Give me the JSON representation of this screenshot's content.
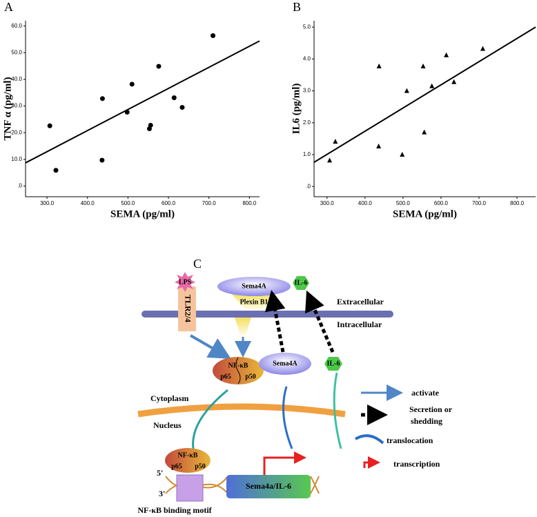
{
  "panels": {
    "a": "A",
    "b": "B",
    "c": "C"
  },
  "chart_data": [
    {
      "type": "scatter",
      "marker": "circle",
      "color": "#000000",
      "x_label": "SEMA (pg/ml)",
      "y_label": "TNF α (pg/ml)",
      "x": [
        307,
        322,
        436,
        437,
        498,
        510,
        553,
        556,
        576,
        614,
        634,
        710
      ],
      "values": [
        22.6,
        5.9,
        9.7,
        32.8,
        27.7,
        38.2,
        21.5,
        22.8,
        44.9,
        33.1,
        29.5,
        56.4
      ],
      "fit_line": {
        "x": [
          247,
          825
        ],
        "y": [
          8.7,
          54.4
        ]
      },
      "xlim": [
        247,
        825
      ],
      "ylim": [
        -4,
        62
      ],
      "xticks": [
        {
          "value": 300,
          "label": "300.0"
        },
        {
          "value": 400,
          "label": "400.0"
        },
        {
          "value": 500,
          "label": "500.0"
        },
        {
          "value": 600,
          "label": "600.0"
        },
        {
          "value": 700,
          "label": "700.0"
        },
        {
          "value": 800,
          "label": "800.0"
        }
      ],
      "yticks": [
        {
          "value": 0,
          "label": ".0"
        },
        {
          "value": 10,
          "label": "10.0"
        },
        {
          "value": 20,
          "label": "20.0"
        },
        {
          "value": 30,
          "label": "30.0"
        },
        {
          "value": 40,
          "label": "40.0"
        },
        {
          "value": 50,
          "label": "50.0"
        },
        {
          "value": 60,
          "label": "60.0"
        }
      ]
    },
    {
      "type": "scatter",
      "marker": "triangle",
      "color": "#000000",
      "x_label": "SEMA (pg/ml)",
      "y_label": "IL6 (pg/ml)",
      "x": [
        307,
        322,
        436,
        437,
        498,
        510,
        553,
        556,
        576,
        614,
        634,
        710
      ],
      "values": [
        0.82,
        1.41,
        1.26,
        3.77,
        1.0,
        3.0,
        3.77,
        1.7,
        3.15,
        4.12,
        3.28,
        4.32
      ],
      "fit_line": {
        "x": [
          266,
          849
        ],
        "y": [
          0.76,
          5.0
        ]
      },
      "xlim": [
        266,
        849
      ],
      "ylim": [
        -0.32,
        5.2
      ],
      "xticks": [
        {
          "value": 300,
          "label": "300.0"
        },
        {
          "value": 400,
          "label": "400.0"
        },
        {
          "value": 500,
          "label": "500.0"
        },
        {
          "value": 600,
          "label": "600.0"
        },
        {
          "value": 700,
          "label": "700.0"
        },
        {
          "value": 800,
          "label": "800.0"
        }
      ],
      "yticks": [
        {
          "value": 0,
          "label": ".0"
        },
        {
          "value": 1,
          "label": "1.0"
        },
        {
          "value": 2,
          "label": "2.0"
        },
        {
          "value": 3,
          "label": "3.0"
        },
        {
          "value": 4,
          "label": "4.0"
        },
        {
          "value": 5,
          "label": "5.0"
        }
      ]
    }
  ],
  "diagram": {
    "lps": "LPS",
    "tlr": "TLR2/4",
    "sema_top": "Sema4A",
    "plexin": "Plexin B1",
    "il6_top": "IL-6",
    "extracellular": "Extracellular",
    "intracellular": "Intracellular",
    "nfkb": "NF-κB",
    "p65": "p65",
    "p50": "p50",
    "sema_mid": "Sema4A",
    "il6_mid": "IL-6",
    "cytoplasm": "Cytoplasm",
    "nucleus": "Nucleus",
    "nfkb_low": "NF-κB",
    "p65_low": "p65",
    "p50_low": "p50",
    "five": "5'",
    "three": "3'",
    "gene": "Sema4a/IL-6",
    "motif": "NF-κB binding motif",
    "legend": {
      "activate": "activate",
      "secretion_1": "Secretion or",
      "secretion_2": "shedding",
      "translocation": "translocation",
      "transcription": "transcription"
    }
  }
}
